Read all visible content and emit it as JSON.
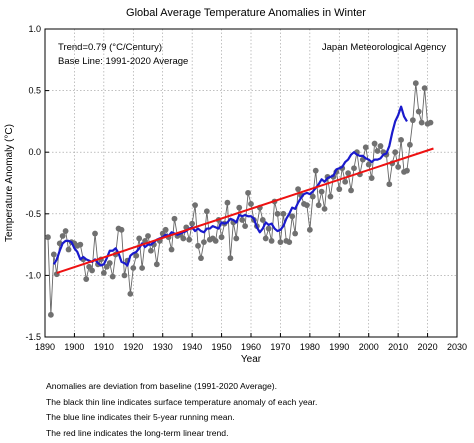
{
  "chart_data": {
    "type": "line",
    "title": "Global Average Temperature Anomalies in Winter",
    "xlabel": "Year",
    "ylabel": "Temperature Anomaly (°C)",
    "xlim": [
      1890,
      2030
    ],
    "ylim": [
      -1.5,
      1.0
    ],
    "xticks": [
      "1890",
      "1900",
      "1910",
      "1920",
      "1930",
      "1940",
      "1950",
      "1960",
      "1970",
      "1980",
      "1990",
      "2000",
      "2010",
      "2020",
      "2030"
    ],
    "yticks": [
      "1.0",
      "0.5",
      "0.0",
      "-0.5",
      "-1.0",
      "-1.5"
    ],
    "grid": true,
    "annotations": {
      "trend": "Trend=0.79 (°C/Century)",
      "baseline": "Base Line: 1991-2020 Average",
      "source": "Japan Meteorological Agency"
    },
    "series": [
      {
        "role": "annual",
        "color": "#666666",
        "marker_color": "#707070",
        "x_start": 1891,
        "values": [
          -0.69,
          -1.32,
          -0.83,
          -0.99,
          -0.74,
          -0.68,
          -0.64,
          -0.79,
          -0.73,
          -0.74,
          -0.76,
          -0.75,
          -0.87,
          -1.03,
          -0.93,
          -0.96,
          -0.66,
          -0.91,
          -0.87,
          -0.98,
          -0.93,
          -0.9,
          -1.01,
          -0.83,
          -0.62,
          -0.63,
          -1.0,
          -0.88,
          -1.15,
          -0.94,
          -0.84,
          -0.7,
          -0.94,
          -0.72,
          -0.68,
          -0.8,
          -0.75,
          -0.91,
          -0.72,
          -0.66,
          -0.63,
          -0.69,
          -0.79,
          -0.54,
          -0.68,
          -0.67,
          -0.7,
          -0.61,
          -0.71,
          -0.58,
          -0.43,
          -0.76,
          -0.86,
          -0.73,
          -0.48,
          -0.71,
          -0.7,
          -0.72,
          -0.55,
          -0.69,
          -0.58,
          -0.41,
          -0.86,
          -0.57,
          -0.7,
          -0.45,
          -0.55,
          -0.6,
          -0.33,
          -0.42,
          -0.55,
          -0.6,
          -0.45,
          -0.55,
          -0.7,
          -0.62,
          -0.72,
          -0.4,
          -0.5,
          -0.73,
          -0.5,
          -0.72,
          -0.73,
          -0.52,
          -0.66,
          -0.3,
          -0.35,
          -0.42,
          -0.43,
          -0.63,
          -0.36,
          -0.15,
          -0.43,
          -0.32,
          -0.46,
          -0.2,
          -0.36,
          -0.2,
          -0.16,
          -0.3,
          -0.13,
          -0.24,
          -0.17,
          -0.31,
          -0.13,
          0.0,
          -0.18,
          -0.06,
          0.04,
          -0.1,
          -0.21,
          0.07,
          0.01,
          0.05,
          0.0,
          -0.02,
          -0.26,
          -0.09,
          0.0,
          -0.12,
          0.1,
          -0.16,
          -0.15,
          0.06,
          0.26,
          0.56,
          0.33,
          0.24,
          0.52,
          0.23,
          0.24
        ]
      },
      {
        "role": "5-year running mean",
        "color": "#1a1acc",
        "x_start": 1893,
        "values": [
          -0.91,
          -0.87,
          -0.8,
          -0.74,
          -0.72,
          -0.72,
          -0.73,
          -0.78,
          -0.81,
          -0.87,
          -0.85,
          -0.87,
          -0.88,
          -0.89,
          -0.87,
          -0.9,
          -0.92,
          -0.91,
          -0.86,
          -0.8,
          -0.8,
          -0.78,
          -0.82,
          -0.89,
          -0.9,
          -0.92,
          -0.84,
          -0.82,
          -0.81,
          -0.78,
          -0.74,
          -0.77,
          -0.75,
          -0.75,
          -0.73,
          -0.71,
          -0.7,
          -0.69,
          -0.67,
          -0.68,
          -0.65,
          -0.66,
          -0.67,
          -0.66,
          -0.65,
          -0.64,
          -0.62,
          -0.61,
          -0.64,
          -0.62,
          -0.64,
          -0.65,
          -0.62,
          -0.62,
          -0.6,
          -0.61,
          -0.62,
          -0.57,
          -0.58,
          -0.57,
          -0.54,
          -0.55,
          -0.57,
          -0.51,
          -0.52,
          -0.51,
          -0.52,
          -0.52,
          -0.54,
          -0.61,
          -0.65,
          -0.62,
          -0.57,
          -0.59,
          -0.58,
          -0.62,
          -0.64,
          -0.63,
          -0.6,
          -0.54,
          -0.5,
          -0.45,
          -0.46,
          -0.41,
          -0.37,
          -0.34,
          -0.33,
          -0.34,
          -0.32,
          -0.29,
          -0.26,
          -0.22,
          -0.24,
          -0.21,
          -0.2,
          -0.19,
          -0.14,
          -0.13,
          -0.12,
          -0.08,
          -0.06,
          -0.02,
          0.0,
          -0.02,
          -0.03,
          -0.03,
          -0.05,
          -0.06,
          -0.08,
          -0.06,
          -0.06,
          -0.05,
          -0.02,
          -0.01,
          0.05,
          0.16,
          0.25,
          0.3,
          0.37,
          0.29,
          0.25
        ]
      },
      {
        "role": "long-term linear trend",
        "color": "#ee1111",
        "x": [
          1894,
          2022
        ],
        "values": [
          -0.98,
          0.03
        ]
      }
    ]
  },
  "notes": [
    "Anomalies are deviation from baseline (1991-2020 Average).",
    "The black thin line indicates surface temperature anomaly of each year.",
    "The blue line indicates their 5-year running mean.",
    "The red line indicates the long-term linear trend."
  ]
}
